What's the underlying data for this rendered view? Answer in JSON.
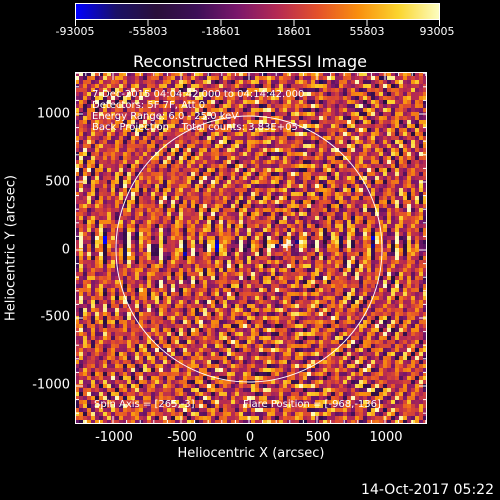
{
  "colorbar": {
    "ticks": [
      "-93005",
      "-55803",
      "-18601",
      "18601",
      "55803",
      "93005"
    ],
    "gradient": [
      "#0000ff",
      "#1a1066",
      "#2a0f3a",
      "#3d0f57",
      "#7a176b",
      "#b52a53",
      "#e4512a",
      "#f98f0e",
      "#fbd52f",
      "#fcfdbf"
    ]
  },
  "title": "Reconstructed RHESSI Image",
  "x_axis": {
    "label": "Heliocentric X (arcsec)",
    "ticks": [
      "-1000",
      "-500",
      "0",
      "500",
      "1000"
    ]
  },
  "y_axis": {
    "label": "Heliocentric Y (arcsec)",
    "ticks": [
      "1000",
      "500",
      "0",
      "-500",
      "-1000"
    ]
  },
  "annotations": {
    "line1": "7-Dec-2015 04:04:42.000 to 04:14:42.000",
    "line2": "Detectors: 5F 7F, Att 0",
    "line3": "Energy Range: 6.0 - 25.0 keV",
    "line4": "Back Projection    Total counts: 3.83E+05",
    "spin_axis": "Spin Axis = [265,-3]",
    "flare_position": "Flare Position = [-968,-136]"
  },
  "footer_date": "14-Oct-2017 05:22",
  "chart_data": {
    "type": "heatmap",
    "title": "Reconstructed RHESSI Image",
    "xlabel": "Heliocentric X (arcsec)",
    "ylabel": "Heliocentric Y (arcsec)",
    "xlim": [
      -1280,
      1280
    ],
    "ylim": [
      -1280,
      1280
    ],
    "colorbar_range": [
      -93005,
      93005
    ],
    "solar_limb_radius": 970,
    "sun_center_marker": [
      265,
      -3
    ],
    "spin_axis": [
      265,
      -3
    ],
    "flare_position": [
      -968,
      -136
    ]
  }
}
